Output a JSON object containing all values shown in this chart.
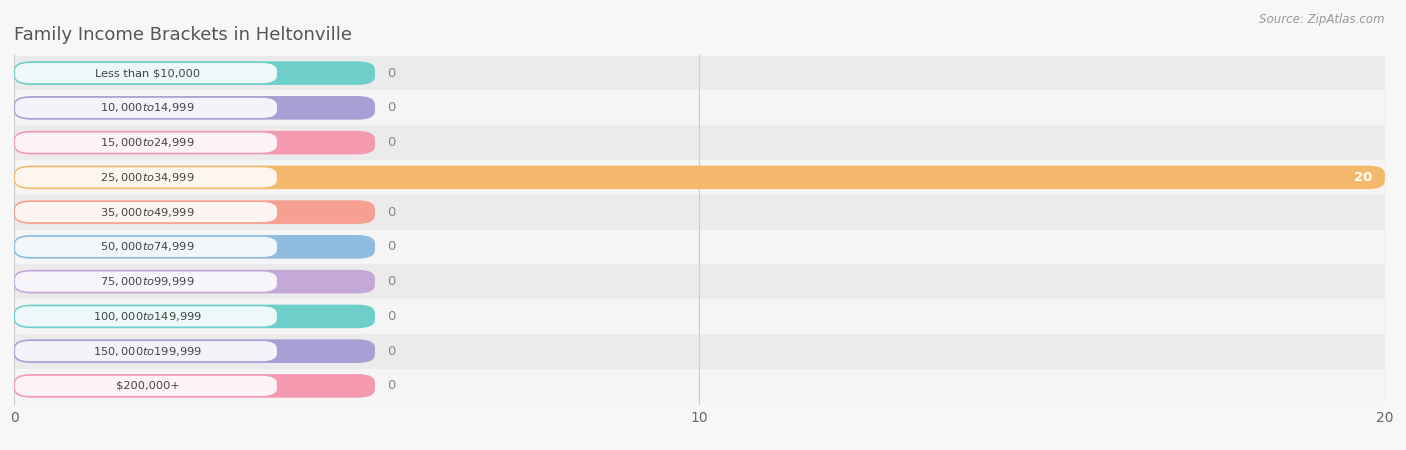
{
  "title": "Family Income Brackets in Heltonville",
  "source": "Source: ZipAtlas.com",
  "categories": [
    "Less than $10,000",
    "$10,000 to $14,999",
    "$15,000 to $24,999",
    "$25,000 to $34,999",
    "$35,000 to $49,999",
    "$50,000 to $74,999",
    "$75,000 to $99,999",
    "$100,000 to $149,999",
    "$150,000 to $199,999",
    "$200,000+"
  ],
  "values": [
    0,
    0,
    0,
    20,
    0,
    0,
    0,
    0,
    0,
    0
  ],
  "bar_colors": [
    "#6ecfca",
    "#a89fd4",
    "#f599b0",
    "#f5b96e",
    "#f5a090",
    "#90bce0",
    "#c4a8d8",
    "#6ecfca",
    "#a89fd4",
    "#f599b0"
  ],
  "background_color": "#f7f7f7",
  "xlim": [
    0,
    20
  ],
  "xticks": [
    0,
    10,
    20
  ],
  "title_fontsize": 13,
  "tick_fontsize": 10,
  "value_label_color_nonzero": "#ffffff",
  "value_label_color_zero": "#888888",
  "row_even_color": "#ebebeb",
  "row_odd_color": "#f5f5f5"
}
